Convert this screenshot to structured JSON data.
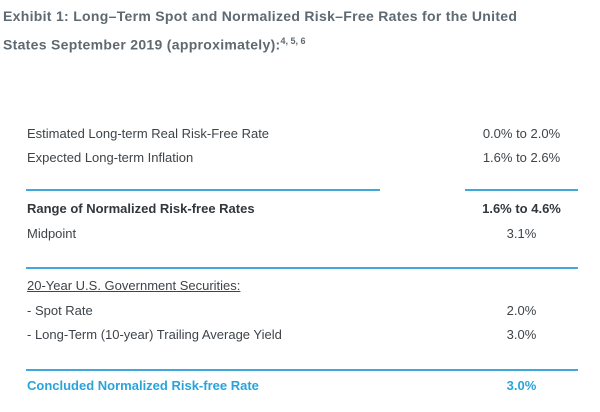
{
  "title": {
    "line1": "Exhibit 1: Long–Term Spot and Normalized Risk–Free Rates for the United",
    "line2": "States September 2019 (approximately):",
    "footnote_refs": "4, 5, 6"
  },
  "table": {
    "rows": [
      {
        "label": "Estimated Long-term Real Risk-Free Rate",
        "value": "0.0% to 2.0%"
      },
      {
        "label": "Expected Long-term Inflation",
        "value": "1.6% to 2.6%"
      },
      {
        "label": "Range of Normalized Risk-free Rates",
        "value": "1.6% to 4.6%"
      },
      {
        "label": "Midpoint",
        "value": "3.1%"
      },
      {
        "label": "20-Year U.S. Government Securities:"
      },
      {
        "label": "- Spot Rate",
        "value": "2.0%"
      },
      {
        "label": "- Long-Term (10-year) Trailing Average Yield",
        "value": "3.0%"
      },
      {
        "label": "Concluded Normalized Risk-free Rate",
        "value": "3.0%"
      }
    ]
  },
  "colors": {
    "accent_blue": "#29A4DB",
    "divider_blue": "#3FA9DC",
    "title_gray": "#5E6971",
    "body_text": "#3E4449"
  }
}
